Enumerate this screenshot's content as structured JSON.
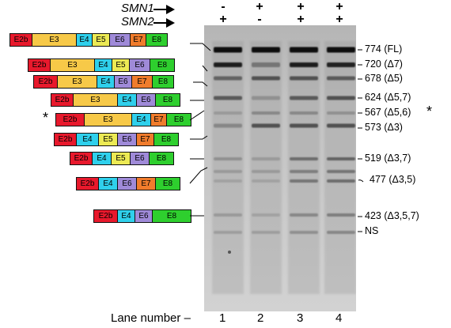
{
  "header": {
    "smn1_label": "SMN1",
    "smn2_label": "SMN2",
    "smn1_signs": [
      "-",
      "+",
      "+",
      "+"
    ],
    "smn2_signs": [
      "+",
      "-",
      "+",
      "+"
    ]
  },
  "exon_colors": {
    "E2b": "#e8192c",
    "E3": "#f7c948",
    "E4": "#2fd0ec",
    "E5": "#ecea54",
    "E6": "#9f8ad8",
    "E7": "#f07c2c",
    "E8": "#2ecf2e"
  },
  "constructs": [
    {
      "exons": [
        "E2b",
        "E3",
        "E4",
        "E5",
        "E6",
        "E7",
        "E8"
      ],
      "marked": false
    },
    {
      "exons": [
        "E2b",
        "E3",
        "E4",
        "E5",
        "E6",
        "E8"
      ],
      "marked": false
    },
    {
      "exons": [
        "E2b",
        "E3",
        "E4",
        "E6",
        "E7",
        "E8"
      ],
      "marked": false
    },
    {
      "exons": [
        "E2b",
        "E3",
        "E4",
        "E6",
        "E8"
      ],
      "marked": false
    },
    {
      "exons": [
        "E2b",
        "E3",
        "E4",
        "E7",
        "E8"
      ],
      "marked": true
    },
    {
      "exons": [
        "E2b",
        "E4",
        "E5",
        "E6",
        "E7",
        "E8"
      ],
      "marked": false
    },
    {
      "exons": [
        "E2b",
        "E4",
        "E5",
        "E6",
        "E8"
      ],
      "marked": false
    },
    {
      "exons": [
        "E2b",
        "E4",
        "E6",
        "E7",
        "E8"
      ],
      "marked": false
    },
    {
      "exons": [
        "E2b",
        "E4",
        "E6",
        "E8"
      ],
      "marked": false
    }
  ],
  "star_symbol": "*",
  "band_labels": [
    "774 (FL)",
    "720 (Δ7)",
    "678 (Δ5)",
    "624 (Δ5,7)",
    "567 (Δ5,6)",
    "573 (Δ3)",
    "519 (Δ3,7)",
    "477 (Δ3,5)",
    "423 (Δ3,5,7)",
    "NS"
  ],
  "lanes": {
    "label": "Lane number –",
    "numbers": [
      "1",
      "2",
      "3",
      "4"
    ]
  }
}
